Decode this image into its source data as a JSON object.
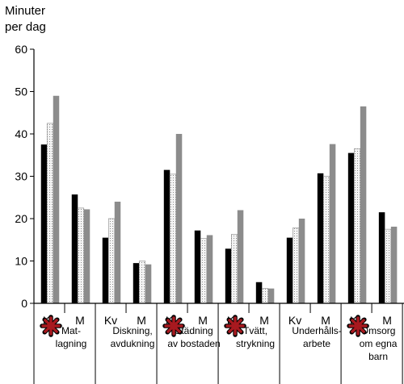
{
  "chart_data": {
    "type": "bar",
    "ylabel": [
      "Minuter",
      "per dag"
    ],
    "ylim": [
      0,
      60
    ],
    "yticks": [
      0,
      10,
      20,
      30,
      40,
      50,
      60
    ],
    "grid": false,
    "legend": "none",
    "bar_colors": [
      "#000000",
      "#f2f2f2",
      "#8c8c8c"
    ],
    "bar_patterns": [
      "solid",
      "dotted",
      "solid"
    ],
    "highlight_color": "#a8191f",
    "groups": [
      {
        "label": [
          "Mat-",
          "lagning"
        ],
        "highlighted": true,
        "subgroups": [
          {
            "label": "Kv",
            "values": [
              37.5,
              42.5,
              49
            ]
          },
          {
            "label": "M",
            "values": [
              25.7,
              22.5,
              22.2
            ]
          }
        ]
      },
      {
        "label": [
          "Diskning,",
          "avdukning"
        ],
        "highlighted": false,
        "subgroups": [
          {
            "label": "Kv",
            "values": [
              15.5,
              20,
              24
            ]
          },
          {
            "label": "M",
            "values": [
              9.5,
              10,
              9.2
            ]
          }
        ]
      },
      {
        "label": [
          "Städning",
          "av bostaden"
        ],
        "highlighted": true,
        "subgroups": [
          {
            "label": "Kv",
            "values": [
              31.5,
              30.5,
              40
            ]
          },
          {
            "label": "M",
            "values": [
              17.2,
              15.3,
              16.1
            ]
          }
        ]
      },
      {
        "label": [
          "Tvätt,",
          "strykning"
        ],
        "highlighted": true,
        "subgroups": [
          {
            "label": "Kv",
            "values": [
              12.9,
              16.3,
              22
            ]
          },
          {
            "label": "M",
            "values": [
              5,
              3.5,
              3.5
            ]
          }
        ]
      },
      {
        "label": [
          "Underhålls-",
          "arbete"
        ],
        "highlighted": false,
        "subgroups": [
          {
            "label": "Kv",
            "values": [
              15.5,
              17.8,
              20
            ]
          },
          {
            "label": "M",
            "values": [
              30.7,
              30,
              37.6
            ]
          }
        ]
      },
      {
        "label": [
          "Omsorg",
          "om egna",
          "barn"
        ],
        "highlighted": true,
        "subgroups": [
          {
            "label": "Kv",
            "values": [
              35.5,
              36.5,
              46.5
            ]
          },
          {
            "label": "M",
            "values": [
              21.5,
              17.5,
              18.1
            ]
          }
        ]
      }
    ]
  }
}
